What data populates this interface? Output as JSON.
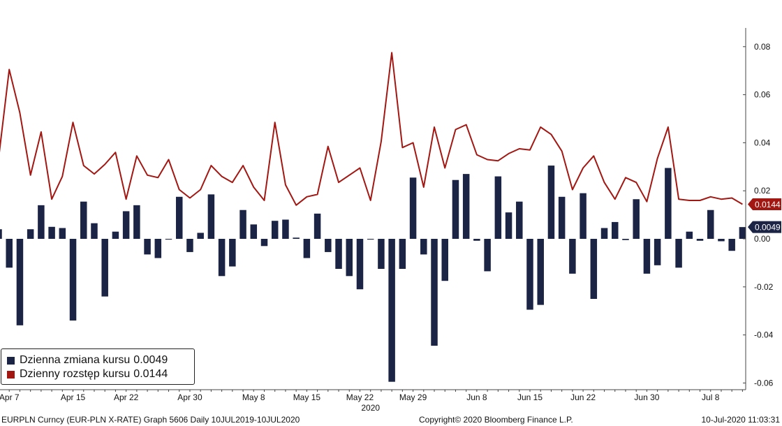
{
  "chart_data": {
    "type": "bar+line",
    "series": [
      {
        "name": "Dzienna zmiana kursu",
        "type": "bar",
        "color": "#1b2444",
        "last_value": "0.0049",
        "values": [
          0.004,
          -0.012,
          -0.036,
          0.004,
          0.014,
          0.005,
          0.0045,
          -0.034,
          0.0155,
          0.0065,
          -0.024,
          0.003,
          0.0115,
          0.014,
          -0.0065,
          -0.008,
          -0.0003,
          0.0175,
          -0.0055,
          0.0025,
          0.0185,
          -0.0155,
          -0.0115,
          0.012,
          0.006,
          -0.003,
          0.0075,
          0.008,
          0.0005,
          -0.008,
          0.0105,
          -0.0055,
          -0.0125,
          -0.0155,
          -0.021,
          -0.0003,
          -0.0125,
          -0.0595,
          -0.0125,
          0.0255,
          -0.0065,
          -0.0445,
          -0.0175,
          0.0245,
          0.027,
          -0.0008,
          -0.0135,
          0.026,
          0.011,
          0.0155,
          -0.0295,
          -0.0275,
          0.0305,
          0.0175,
          -0.0145,
          0.019,
          -0.025,
          0.0045,
          0.007,
          -0.0005,
          0.0165,
          -0.0145,
          -0.011,
          0.0295,
          -0.012,
          0.003,
          -0.0008,
          0.012,
          -0.001,
          -0.005,
          0.0049
        ]
      },
      {
        "name": "Dzienny rozstęp kursu",
        "type": "line",
        "color": "#a31712",
        "last_value": "0.0144",
        "values": [
          0.0335,
          0.0705,
          0.0525,
          0.0265,
          0.0445,
          0.0165,
          0.026,
          0.0485,
          0.0305,
          0.027,
          0.031,
          0.036,
          0.0165,
          0.0345,
          0.0265,
          0.0255,
          0.033,
          0.0205,
          0.017,
          0.0205,
          0.0305,
          0.026,
          0.0235,
          0.0305,
          0.0215,
          0.016,
          0.0485,
          0.0225,
          0.014,
          0.0175,
          0.0185,
          0.0385,
          0.0235,
          0.0265,
          0.0295,
          0.016,
          0.0405,
          0.0775,
          0.038,
          0.04,
          0.0215,
          0.0465,
          0.0295,
          0.0455,
          0.0475,
          0.035,
          0.033,
          0.0325,
          0.0355,
          0.0375,
          0.037,
          0.0465,
          0.0435,
          0.0365,
          0.0205,
          0.0295,
          0.0345,
          0.0235,
          0.0165,
          0.0255,
          0.0235,
          0.0155,
          0.0335,
          0.0465,
          0.0165,
          0.016,
          0.016,
          0.0175,
          0.0165,
          0.017,
          0.0144
        ]
      }
    ],
    "x_ticks": [
      "Apr 7",
      "Apr 15",
      "Apr 22",
      "Apr 30",
      "May 8",
      "May 15",
      "May 22",
      "May 29",
      "Jun 8",
      "Jun 15",
      "Jun 22",
      "Jun 30",
      "Jul 8"
    ],
    "x_tick_index": [
      1,
      7,
      12,
      18,
      24,
      29,
      34,
      39,
      45,
      50,
      55,
      61,
      67
    ],
    "year_label": "2020",
    "year_label_index": 35,
    "y_ticks": [
      "0.08",
      "0.06",
      "0.04",
      "0.02",
      "0.00",
      "-0.02",
      "-0.04",
      "-0.06"
    ],
    "ylim": [
      -0.062,
      0.08
    ],
    "grid": false,
    "legend_position": "bottom-left"
  },
  "legend": {
    "items": [
      {
        "label": "Dzienna zmiana kursu",
        "value": "0.0049",
        "color": "#1b2444"
      },
      {
        "label": "Dzienny rozstęp kursu",
        "value": "0.0144",
        "color": "#a31712"
      }
    ]
  },
  "footer": {
    "left": "EURPLN Curncy (EUR-PLN X-RATE) Graph 5606  Daily 10JUL2019-10JUL2020",
    "center": "Copyright© 2020 Bloomberg Finance L.P.",
    "right": "10-Jul-2020 11:03:31"
  }
}
